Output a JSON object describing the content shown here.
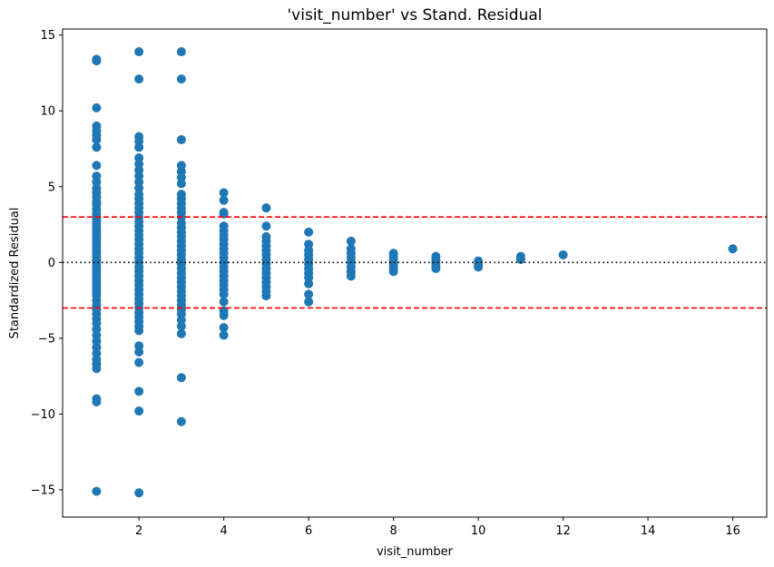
{
  "chart_data": {
    "type": "scatter",
    "title": "'visit_number' vs Stand. Residual",
    "xlabel": "visit_number",
    "ylabel": "Standardized Residual",
    "xlim": [
      0.2,
      16.8
    ],
    "ylim": [
      -16.8,
      15.4
    ],
    "xticks": [
      2,
      4,
      6,
      8,
      10,
      12,
      14,
      16
    ],
    "yticks": [
      -15,
      -10,
      -5,
      0,
      5,
      10,
      15
    ],
    "grid": false,
    "point_color": "#1f77b4",
    "reference_lines": [
      {
        "y": 3,
        "style": "dashed",
        "color": "#ff0000"
      },
      {
        "y": -3,
        "style": "dashed",
        "color": "#ff0000"
      },
      {
        "y": 0,
        "style": "dotted",
        "color": "#000000"
      }
    ],
    "series": [
      {
        "x_value": 1,
        "values": [
          13.4,
          13.3,
          10.2,
          9.0,
          8.7,
          8.4,
          8.1,
          7.6,
          6.4,
          5.7,
          5.3,
          4.9,
          4.6,
          4.3,
          4.0,
          3.8,
          3.5,
          3.2,
          3.0,
          2.8,
          2.6,
          2.4,
          2.2,
          2.0,
          1.8,
          1.6,
          1.4,
          1.2,
          1.0,
          0.8,
          0.6,
          0.4,
          0.2,
          0.0,
          -0.2,
          -0.4,
          -0.6,
          -0.8,
          -1.0,
          -1.2,
          -1.4,
          -1.6,
          -1.8,
          -2.0,
          -2.2,
          -2.5,
          -2.8,
          -3.1,
          -3.4,
          -3.7,
          -4.0,
          -4.4,
          -4.8,
          -5.2,
          -5.6,
          -6.0,
          -6.4,
          -6.7,
          -7.0,
          -9.0,
          -9.2,
          -15.1
        ]
      },
      {
        "x_value": 2,
        "values": [
          13.9,
          12.1,
          8.3,
          8.0,
          7.6,
          6.9,
          6.5,
          6.1,
          5.7,
          5.3,
          4.9,
          4.5,
          4.2,
          3.9,
          3.6,
          3.3,
          3.0,
          2.7,
          2.4,
          2.1,
          1.8,
          1.5,
          1.2,
          0.9,
          0.6,
          0.3,
          0.0,
          -0.3,
          -0.6,
          -0.9,
          -1.2,
          -1.5,
          -1.8,
          -2.1,
          -2.4,
          -2.7,
          -3.0,
          -3.3,
          -3.6,
          -3.9,
          -4.2,
          -4.5,
          -5.5,
          -5.9,
          -6.6,
          -8.5,
          -9.8,
          -15.2
        ]
      },
      {
        "x_value": 3,
        "values": [
          13.9,
          12.1,
          8.1,
          6.4,
          6.0,
          5.6,
          5.2,
          4.5,
          4.2,
          3.9,
          3.6,
          3.3,
          3.0,
          2.6,
          2.3,
          2.0,
          1.7,
          1.4,
          1.1,
          0.8,
          0.5,
          0.2,
          -0.1,
          -0.4,
          -0.7,
          -1.0,
          -1.3,
          -1.6,
          -1.9,
          -2.2,
          -2.5,
          -2.8,
          -3.1,
          -3.4,
          -3.8,
          -4.2,
          -4.7,
          -7.6,
          -10.5
        ]
      },
      {
        "x_value": 4,
        "values": [
          4.6,
          4.1,
          3.3,
          3.2,
          2.4,
          2.1,
          1.8,
          1.5,
          1.2,
          0.9,
          0.6,
          0.3,
          0.0,
          -0.3,
          -0.6,
          -0.9,
          -1.2,
          -1.5,
          -1.8,
          -2.1,
          -2.6,
          -3.2,
          -3.5,
          -4.3,
          -4.8
        ]
      },
      {
        "x_value": 5,
        "values": [
          3.6,
          2.4,
          1.7,
          1.4,
          1.1,
          0.8,
          0.5,
          0.2,
          -0.1,
          -0.4,
          -0.7,
          -1.0,
          -1.3,
          -1.6,
          -1.9,
          -2.2
        ]
      },
      {
        "x_value": 6,
        "values": [
          2.0,
          1.2,
          0.8,
          0.5,
          0.2,
          -0.1,
          -0.4,
          -0.7,
          -1.0,
          -1.4,
          -2.1,
          -2.6
        ]
      },
      {
        "x_value": 7,
        "values": [
          1.4,
          0.9,
          0.6,
          0.3,
          0.0,
          -0.3,
          -0.6,
          -0.9
        ]
      },
      {
        "x_value": 8,
        "values": [
          0.6,
          0.4,
          0.2,
          0.0,
          -0.2,
          -0.4,
          -0.6
        ]
      },
      {
        "x_value": 9,
        "values": [
          0.4,
          0.2,
          0.0,
          -0.2,
          -0.4
        ]
      },
      {
        "x_value": 10,
        "values": [
          0.1,
          -0.1,
          -0.3
        ]
      },
      {
        "x_value": 11,
        "values": [
          0.4,
          0.2
        ]
      },
      {
        "x_value": 12,
        "values": [
          0.5
        ]
      },
      {
        "x_value": 16,
        "values": [
          0.9
        ]
      }
    ]
  }
}
